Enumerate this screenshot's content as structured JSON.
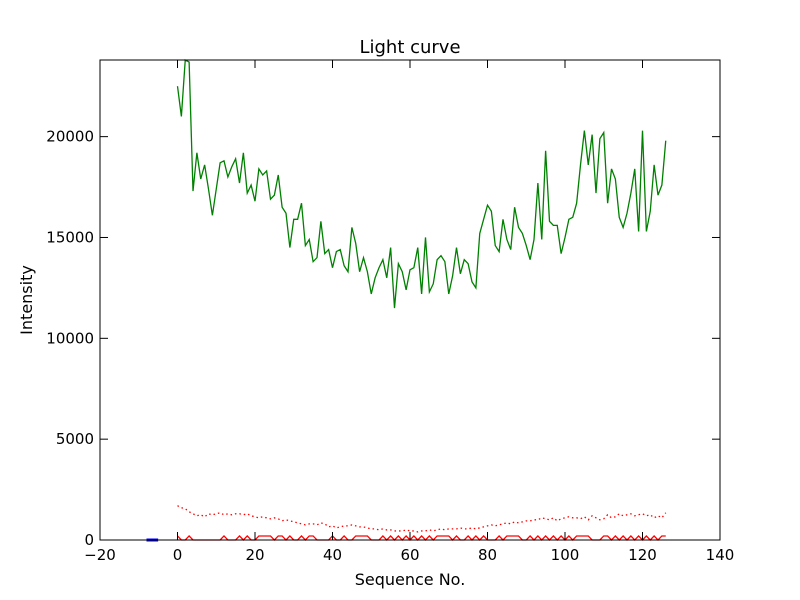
{
  "chart_data": {
    "type": "line",
    "title": "Light curve",
    "xlabel": "Sequence No.",
    "ylabel": "Intensity",
    "xlim": [
      -20,
      140
    ],
    "ylim": [
      0,
      23800
    ],
    "xticks": [
      -20,
      0,
      20,
      40,
      60,
      80,
      100,
      120,
      140
    ],
    "yticks": [
      0,
      5000,
      10000,
      15000,
      20000
    ],
    "grid": false,
    "series": [
      {
        "color": "#008000",
        "style": "solid",
        "x": [
          0,
          1,
          2,
          3,
          4,
          5,
          6,
          7,
          8,
          9,
          10,
          11,
          12,
          13,
          14,
          15,
          16,
          17,
          18,
          19,
          20,
          21,
          22,
          23,
          24,
          25,
          26,
          27,
          28,
          29,
          30,
          31,
          32,
          33,
          34,
          35,
          36,
          37,
          38,
          39,
          40,
          41,
          42,
          43,
          44,
          45,
          46,
          47,
          48,
          49,
          50,
          51,
          52,
          53,
          54,
          55,
          56,
          57,
          58,
          59,
          60,
          61,
          62,
          63,
          64,
          65,
          66,
          67,
          68,
          69,
          70,
          71,
          72,
          73,
          74,
          75,
          76,
          77,
          78,
          79,
          80,
          81,
          82,
          83,
          84,
          85,
          86,
          87,
          88,
          89,
          90,
          91,
          92,
          93,
          94,
          95,
          96,
          97,
          98,
          99,
          100,
          101,
          102,
          103,
          104,
          105,
          106,
          107,
          108,
          109,
          110,
          111,
          112,
          113,
          114,
          115,
          116,
          117,
          118,
          119,
          120,
          121,
          122,
          123,
          124,
          125,
          126
        ],
        "values": [
          22500,
          21000,
          23800,
          23700,
          17300,
          19200,
          17900,
          18600,
          17400,
          16100,
          17400,
          18700,
          18800,
          18000,
          18500,
          18900,
          17700,
          19200,
          17200,
          17600,
          16800,
          18400,
          18100,
          18300,
          16900,
          17100,
          18100,
          16500,
          16200,
          14500,
          15900,
          15900,
          16700,
          14600,
          14900,
          13800,
          14000,
          15800,
          14200,
          14400,
          13500,
          14300,
          14400,
          13600,
          13300,
          15500,
          14700,
          13300,
          14000,
          13300,
          12200,
          13000,
          13500,
          13900,
          13000,
          14500,
          11500,
          13700,
          13300,
          12400,
          13400,
          13500,
          14500,
          12200,
          15000,
          12300,
          12700,
          13900,
          14100,
          13800,
          12200,
          13100,
          14500,
          13200,
          13900,
          13700,
          12800,
          12500,
          15200,
          15900,
          16600,
          16300,
          14600,
          14300,
          15900,
          14900,
          14400,
          16500,
          15500,
          15200,
          14600,
          13900,
          14900,
          17700,
          14900,
          19300,
          15800,
          15600,
          15600,
          14200,
          15000,
          15900,
          16000,
          16700,
          18600,
          20300,
          18600,
          20100,
          17200,
          19900,
          20200,
          16700,
          18400,
          17900,
          16000,
          15500,
          16200,
          17200,
          18400,
          15300,
          20300,
          15300,
          16300,
          18600,
          17100,
          17600,
          19800
        ]
      },
      {
        "color": "#ff0000",
        "style": "dotted",
        "x": [
          0,
          1,
          2,
          3,
          4,
          5,
          6,
          7,
          8,
          9,
          10,
          11,
          12,
          13,
          14,
          15,
          16,
          17,
          18,
          19,
          20,
          21,
          22,
          23,
          24,
          25,
          26,
          27,
          28,
          29,
          30,
          31,
          32,
          33,
          34,
          35,
          36,
          37,
          38,
          39,
          40,
          41,
          42,
          43,
          44,
          45,
          46,
          47,
          48,
          49,
          50,
          51,
          52,
          53,
          54,
          55,
          56,
          57,
          58,
          59,
          60,
          61,
          62,
          63,
          64,
          65,
          66,
          67,
          68,
          69,
          70,
          71,
          72,
          73,
          74,
          75,
          76,
          77,
          78,
          79,
          80,
          81,
          82,
          83,
          84,
          85,
          86,
          87,
          88,
          89,
          90,
          91,
          92,
          93,
          94,
          95,
          96,
          97,
          98,
          99,
          100,
          101,
          102,
          103,
          104,
          105,
          106,
          107,
          108,
          109,
          110,
          111,
          112,
          113,
          114,
          115,
          116,
          117,
          118,
          119,
          120,
          121,
          122,
          123,
          124,
          125,
          126
        ],
        "values": [
          1700,
          1600,
          1550,
          1400,
          1300,
          1200,
          1250,
          1150,
          1300,
          1250,
          1300,
          1350,
          1250,
          1300,
          1250,
          1300,
          1300,
          1250,
          1300,
          1200,
          1150,
          1100,
          1150,
          1100,
          1050,
          1100,
          1050,
          950,
          1000,
          950,
          900,
          850,
          800,
          750,
          800,
          800,
          750,
          850,
          800,
          650,
          700,
          600,
          650,
          700,
          700,
          750,
          700,
          650,
          650,
          600,
          550,
          550,
          500,
          550,
          500,
          500,
          450,
          450,
          450,
          500,
          450,
          450,
          400,
          450,
          450,
          500,
          450,
          500,
          550,
          500,
          550,
          550,
          550,
          600,
          550,
          550,
          600,
          550,
          600,
          650,
          700,
          750,
          700,
          750,
          800,
          850,
          800,
          900,
          850,
          900,
          950,
          950,
          1000,
          1000,
          1100,
          1050,
          1000,
          1100,
          950,
          1050,
          1100,
          1150,
          1100,
          1100,
          1050,
          1150,
          1000,
          1200,
          1100,
          1000,
          1050,
          1250,
          1100,
          1150,
          1300,
          1200,
          1250,
          1300,
          1200,
          1250,
          1300,
          1200,
          1250,
          1100,
          1200,
          1100,
          1350
        ]
      },
      {
        "color": "#ff0000",
        "style": "solid",
        "x": [
          0,
          1,
          2,
          3,
          4,
          5,
          6,
          7,
          8,
          9,
          10,
          11,
          12,
          13,
          14,
          15,
          16,
          17,
          18,
          19,
          20,
          21,
          22,
          23,
          24,
          25,
          26,
          27,
          28,
          29,
          30,
          31,
          32,
          33,
          34,
          35,
          36,
          37,
          38,
          39,
          40,
          41,
          42,
          43,
          44,
          45,
          46,
          47,
          48,
          49,
          50,
          51,
          52,
          53,
          54,
          55,
          56,
          57,
          58,
          59,
          60,
          61,
          62,
          63,
          64,
          65,
          66,
          67,
          68,
          69,
          70,
          71,
          72,
          73,
          74,
          75,
          76,
          77,
          78,
          79,
          80,
          81,
          82,
          83,
          84,
          85,
          86,
          87,
          88,
          89,
          90,
          91,
          92,
          93,
          94,
          95,
          96,
          97,
          98,
          99,
          100,
          101,
          102,
          103,
          104,
          105,
          106,
          107,
          108,
          109,
          110,
          111,
          112,
          113,
          114,
          115,
          116,
          117,
          118,
          119,
          120,
          121,
          122,
          123,
          124,
          125,
          126
        ],
        "values": [
          200,
          0,
          0,
          200,
          0,
          0,
          0,
          0,
          0,
          0,
          0,
          0,
          200,
          0,
          0,
          0,
          200,
          0,
          200,
          0,
          0,
          200,
          200,
          200,
          200,
          0,
          200,
          200,
          0,
          200,
          0,
          0,
          200,
          0,
          200,
          200,
          0,
          0,
          0,
          0,
          200,
          0,
          0,
          200,
          0,
          0,
          200,
          200,
          200,
          200,
          0,
          0,
          0,
          200,
          0,
          200,
          0,
          200,
          0,
          200,
          0,
          200,
          0,
          200,
          0,
          200,
          0,
          200,
          200,
          200,
          200,
          0,
          200,
          0,
          0,
          200,
          0,
          200,
          0,
          200,
          0,
          0,
          0,
          200,
          0,
          200,
          200,
          200,
          200,
          0,
          0,
          200,
          0,
          200,
          0,
          200,
          0,
          200,
          0,
          200,
          0,
          200,
          0,
          200,
          200,
          200,
          200,
          0,
          0,
          0,
          200,
          200,
          0,
          200,
          0,
          200,
          0,
          200,
          0,
          200,
          0,
          200,
          0,
          200,
          0,
          200,
          200
        ]
      },
      {
        "color": "#0000ff",
        "style": "solid",
        "x": [
          -8,
          -7,
          -6,
          -5
        ],
        "values": [
          0,
          0,
          0,
          0
        ]
      }
    ]
  }
}
